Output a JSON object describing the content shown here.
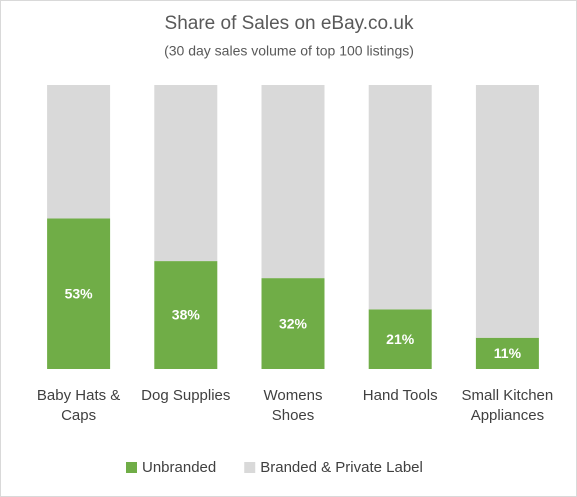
{
  "chart_data": {
    "type": "stacked_bar",
    "title": "Share of Sales on eBay.co.uk",
    "subtitle": "(30 day sales volume of top 100 listings)",
    "categories": [
      "Baby Hats & Caps",
      "Dog Supplies",
      "Womens Shoes",
      "Hand Tools",
      "Small Kitchen Appliances"
    ],
    "series": [
      {
        "name": "Unbranded",
        "color": "#70ad47",
        "values": [
          53,
          38,
          32,
          21,
          11
        ],
        "value_labels": [
          "53%",
          "38%",
          "32%",
          "21%",
          "11%"
        ]
      },
      {
        "name": "Branded & Private Label",
        "color": "#d9d9d9",
        "values": [
          47,
          62,
          68,
          79,
          89
        ]
      }
    ],
    "ylim": [
      0,
      100
    ],
    "legend": "bottom"
  }
}
